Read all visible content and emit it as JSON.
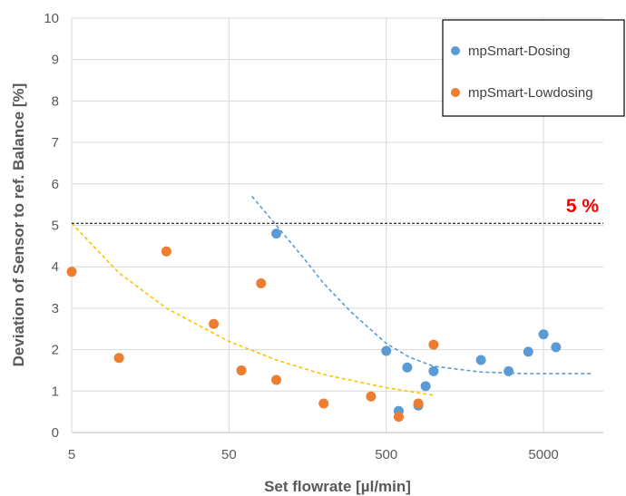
{
  "chart_data": {
    "type": "scatter",
    "xlabel": "Set flowrate [µl/min]",
    "ylabel": "Deviation of Sensor to ref. Balance  [%]",
    "x_scale": "log",
    "xlim": [
      5,
      12000
    ],
    "ylim": [
      0,
      10
    ],
    "x_ticks": [
      5,
      50,
      500,
      5000
    ],
    "x_tick_labels": [
      "5",
      "50",
      "500",
      "5000"
    ],
    "y_ticks": [
      0,
      1,
      2,
      3,
      4,
      5,
      6,
      7,
      8,
      9,
      10
    ],
    "y_tick_labels": [
      "0",
      "1",
      "2",
      "3",
      "4",
      "5",
      "6",
      "7",
      "8",
      "9",
      "10"
    ],
    "grid": true,
    "legend_position": "top-right",
    "series": [
      {
        "name": "mpSmart-Dosing",
        "color": "#5b9bd5",
        "points": [
          {
            "x": 100,
            "y": 4.8
          },
          {
            "x": 500,
            "y": 1.97
          },
          {
            "x": 600,
            "y": 0.52
          },
          {
            "x": 680,
            "y": 1.57
          },
          {
            "x": 800,
            "y": 0.65
          },
          {
            "x": 890,
            "y": 1.12
          },
          {
            "x": 1000,
            "y": 1.48
          },
          {
            "x": 2000,
            "y": 1.75
          },
          {
            "x": 3000,
            "y": 1.48
          },
          {
            "x": 4000,
            "y": 1.95
          },
          {
            "x": 5000,
            "y": 2.37
          },
          {
            "x": 6000,
            "y": 2.06
          }
        ]
      },
      {
        "name": "mpSmart-Lowdosing",
        "color": "#ed7d31",
        "points": [
          {
            "x": 5,
            "y": 3.88
          },
          {
            "x": 10,
            "y": 1.8
          },
          {
            "x": 20,
            "y": 4.37
          },
          {
            "x": 40,
            "y": 2.62
          },
          {
            "x": 60,
            "y": 1.5
          },
          {
            "x": 80,
            "y": 3.6
          },
          {
            "x": 100,
            "y": 1.27
          },
          {
            "x": 200,
            "y": 0.7
          },
          {
            "x": 400,
            "y": 0.87
          },
          {
            "x": 600,
            "y": 0.38
          },
          {
            "x": 800,
            "y": 0.7
          },
          {
            "x": 1000,
            "y": 2.12
          }
        ]
      }
    ],
    "trendlines": [
      {
        "series": "mpSmart-Dosing",
        "color": "#5b9bd5",
        "style": "dashed",
        "points": [
          {
            "x": 70,
            "y": 5.7
          },
          {
            "x": 100,
            "y": 5.0
          },
          {
            "x": 150,
            "y": 4.2
          },
          {
            "x": 200,
            "y": 3.6
          },
          {
            "x": 300,
            "y": 2.9
          },
          {
            "x": 500,
            "y": 2.15
          },
          {
            "x": 700,
            "y": 1.82
          },
          {
            "x": 1000,
            "y": 1.6
          },
          {
            "x": 2000,
            "y": 1.46
          },
          {
            "x": 4000,
            "y": 1.42
          },
          {
            "x": 10000,
            "y": 1.42
          }
        ]
      },
      {
        "series": "mpSmart-Lowdosing",
        "color": "#ffc000",
        "style": "dashed",
        "points": [
          {
            "x": 5,
            "y": 5.05
          },
          {
            "x": 10,
            "y": 3.85
          },
          {
            "x": 20,
            "y": 3.0
          },
          {
            "x": 50,
            "y": 2.2
          },
          {
            "x": 100,
            "y": 1.75
          },
          {
            "x": 200,
            "y": 1.4
          },
          {
            "x": 500,
            "y": 1.08
          },
          {
            "x": 1000,
            "y": 0.9
          }
        ]
      }
    ],
    "reference_line": {
      "y": 5.05,
      "color": "#000000",
      "style": "dashed"
    },
    "annotations": [
      {
        "text": "5 %",
        "color": "#ff0000"
      }
    ]
  }
}
